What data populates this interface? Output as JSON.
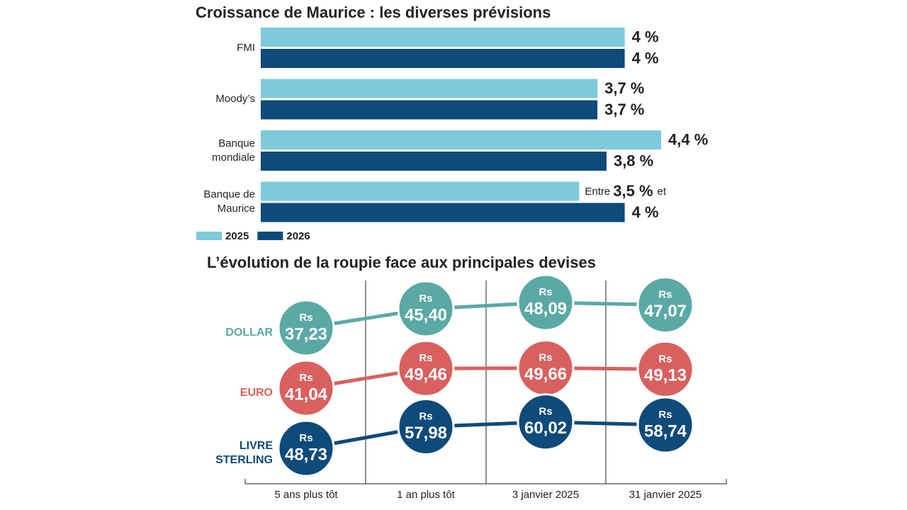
{
  "chart_data": [
    {
      "type": "bar",
      "title": "Croissance de Maurice : les diverses prévisions",
      "categories": [
        "FMI",
        "Moody’s",
        "Banque mondiale",
        "Banque de Maurice"
      ],
      "series": [
        {
          "name": "2025",
          "color": "#7ccadb",
          "values": [
            4,
            3.7,
            4.4,
            3.5
          ],
          "value_labels": [
            "4 %",
            "3,7 %",
            "4,4 %",
            "3,5 %"
          ],
          "value_prefixes": [
            null,
            null,
            null,
            "Entre"
          ],
          "value_suffixes": [
            null,
            null,
            null,
            "et"
          ]
        },
        {
          "name": "2026",
          "color": "#0e4a7a",
          "values": [
            4,
            3.7,
            3.8,
            4
          ],
          "value_labels": [
            "4 %",
            "3,7 %",
            "3,8 %",
            "4 %"
          ]
        }
      ],
      "legend": "bottom-left"
    },
    {
      "type": "line",
      "title": "L’évolution de la roupie face aux principales devises",
      "categories": [
        "5 ans plus tôt",
        "1 an plus tôt",
        "3 janvier 2025",
        "31 janvier 2025"
      ],
      "currency_label": "Rs",
      "series": [
        {
          "name": "DOLLAR",
          "color": "#5aa9a5",
          "values": [
            37.23,
            45.4,
            48.09,
            47.07
          ],
          "value_labels": [
            "37,23",
            "45,40",
            "48,09",
            "47,07"
          ]
        },
        {
          "name": "EURO",
          "color": "#d9605f",
          "values": [
            41.04,
            49.46,
            49.66,
            49.13
          ],
          "value_labels": [
            "41,04",
            "49,46",
            "49,66",
            "49,13"
          ]
        },
        {
          "name": "LIVRE STERLING",
          "color": "#0e4a7a",
          "values": [
            48.73,
            57.98,
            60.02,
            58.74
          ],
          "value_labels": [
            "48,73",
            "57,98",
            "60,02",
            "58,74"
          ]
        }
      ]
    }
  ]
}
